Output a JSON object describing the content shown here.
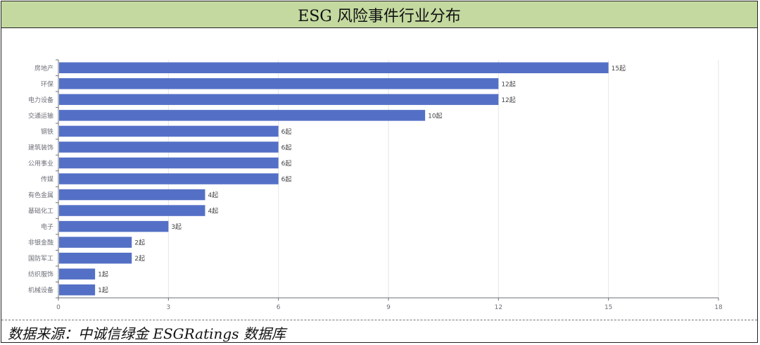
{
  "title": "ESG 风险事件行业分布",
  "source": "数据来源：中诚信绿金 ESGRatings 数据库",
  "chart_data": {
    "type": "bar",
    "orientation": "horizontal",
    "categories": [
      "房地产",
      "环保",
      "电力设备",
      "交通运输",
      "钢铁",
      "建筑装饰",
      "公用事业",
      "传媒",
      "有色金属",
      "基础化工",
      "电子",
      "非银金融",
      "国防军工",
      "纺织服饰",
      "机械设备"
    ],
    "values": [
      15,
      12,
      12,
      10,
      6,
      6,
      6,
      6,
      4,
      4,
      3,
      2,
      2,
      1,
      1
    ],
    "value_suffix": "起",
    "xlim": [
      0,
      18
    ],
    "xticks": [
      0,
      3,
      6,
      9,
      12,
      15,
      18
    ],
    "grid": true,
    "bar_color": "#5470c6"
  }
}
